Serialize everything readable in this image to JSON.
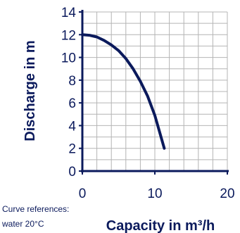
{
  "chart_data": {
    "type": "line",
    "xlabel": "Capacity in m³/h",
    "ylabel": "Discharge in m",
    "xlim": [
      0,
      20
    ],
    "ylim": [
      0,
      14
    ],
    "x_ticks": [
      0,
      10,
      20
    ],
    "y_ticks": [
      0,
      2,
      4,
      6,
      8,
      10,
      12,
      14
    ],
    "grid": true,
    "series": [
      {
        "x": [
          0,
          1,
          2,
          3,
          4,
          5,
          6,
          7,
          8,
          9,
          10,
          11.3
        ],
        "y": [
          12,
          11.95,
          11.8,
          11.5,
          11.1,
          10.6,
          9.9,
          9.0,
          7.9,
          6.6,
          4.9,
          2
        ]
      }
    ]
  },
  "notes": {
    "line1": "Curve references:",
    "line2": "water 20°C"
  },
  "colors": {
    "curve": "#0b1a5c",
    "axis": "#0b1a5c",
    "grid": "#b4b4b4"
  }
}
